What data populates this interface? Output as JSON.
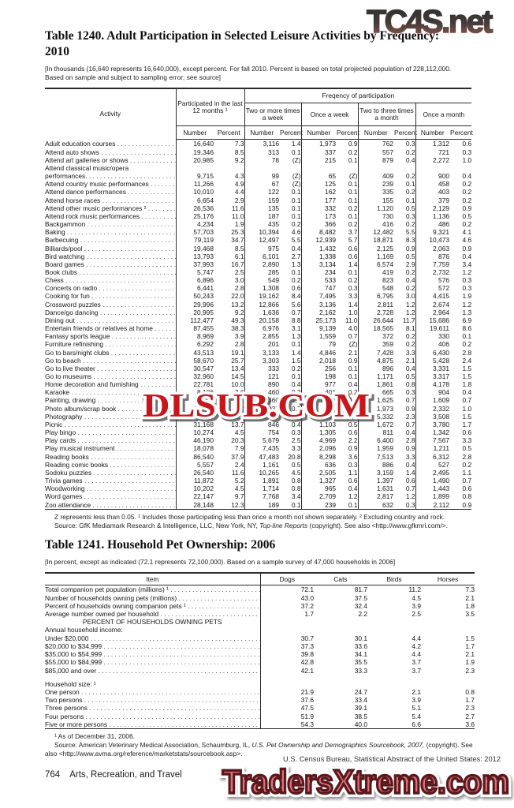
{
  "watermarks": {
    "top": "TC4S.net",
    "middle": "DLSUB.COM",
    "bottom": "TradersXtreme.com",
    "top_color_top": "#2d2d2d",
    "top_color_bottom": "#9c5c50",
    "middle_color": "#c5171c",
    "bottom_fill": "#d8747c",
    "bottom_stroke": "#5a181c"
  },
  "t1240": {
    "title_line1": "Table 1240. Adult Participation in Selected Leisure Activities by Frequency:",
    "title_line2": "2010",
    "note": "[In thousands (16,640 represents 16,640,000), except percent. For fall 2010. Percent is based on total projected population of 228,112,000. Based on sample and subject to sampling error; see source]",
    "header": {
      "activity": "Activity",
      "participated": "Participated in the last 12 months ¹",
      "frequency": "Freqency of participation",
      "groups": [
        "Two or more times a week",
        "Once a week",
        "Two to three times a month",
        "Once a month"
      ],
      "number": "Number",
      "percent": "Percent"
    },
    "rows": [
      [
        "Adult education courses",
        "16,640",
        "7.3",
        "3,116",
        "1.4",
        "1,973",
        "0.9",
        "762",
        "0.3",
        "1,312",
        "0.6"
      ],
      [
        "Attend auto shows",
        "19,346",
        "8.5",
        "313",
        "0.1",
        "337",
        "0.2",
        "557",
        "0.2",
        "721",
        "0.3"
      ],
      [
        "Attend art galleries or shows",
        "20,985",
        "9.2",
        "78",
        "(Z)",
        "215",
        "0.1",
        "879",
        "0.4",
        "2,272",
        "1.0"
      ],
      [
        "Attend classical music/opera|performances.",
        "9,715",
        "4.3",
        "99",
        "(Z)",
        "65",
        "(Z)",
        "409",
        "0.2",
        "900",
        "0.4"
      ],
      [
        "Attend country music performances",
        "11,266",
        "4.9",
        "67",
        "(Z)",
        "125",
        "0.1",
        "239",
        "0.1",
        "458",
        "0.2"
      ],
      [
        "Attend dance performances",
        "10,010",
        "4.4",
        "122",
        "0.1",
        "162",
        "0.1",
        "335",
        "0.2",
        "403",
        "0.2"
      ],
      [
        "Attend horse races",
        "6,654",
        "2.9",
        "159",
        "0.1",
        "177",
        "0.1",
        "155",
        "0.1",
        "379",
        "0.2"
      ],
      [
        "Attend other music performances ²",
        "26,536",
        "11.6",
        "135",
        "0.1",
        "332",
        "0.2",
        "1,120",
        "0.5",
        "2,129",
        "0.9"
      ],
      [
        "Attend rock music performances",
        "25,176",
        "11.0",
        "187",
        "0.1",
        "173",
        "0.1",
        "730",
        "0.3",
        "1,136",
        "0.5"
      ],
      [
        "Backgammon",
        "4,234",
        "1.9",
        "435",
        "0.2",
        "366",
        "0.2",
        "416",
        "0.2",
        "486",
        "0.2"
      ],
      [
        "Baking",
        "57,703",
        "25.3",
        "10,394",
        "4.6",
        "8,482",
        "3.7",
        "12,482",
        "5.5",
        "9,321",
        "4.1"
      ],
      [
        "Barbecuing",
        "79,119",
        "34.7",
        "12,497",
        "5.5",
        "12,939",
        "5.7",
        "18,871",
        "8.3",
        "10,473",
        "4.6"
      ],
      [
        "Billiards/pool",
        "19,468",
        "8.5",
        "975",
        "0.4",
        "1,432",
        "0.6",
        "2,125",
        "0.9",
        "2,063",
        "0.9"
      ],
      [
        "Bird watching",
        "13,793",
        "6.1",
        "6,101",
        "2.7",
        "1,338",
        "0.6",
        "1,169",
        "0.5",
        "876",
        "0.4"
      ],
      [
        "Board games",
        "37,993",
        "16.7",
        "2,890",
        "1.3",
        "3,134",
        "1.4",
        "6,574",
        "2.9",
        "7,759",
        "3.4"
      ],
      [
        "Book clubs",
        "5,747",
        "2.5",
        "285",
        "0.1",
        "234",
        "0.1",
        "419",
        "0.2",
        "2,732",
        "1.2"
      ],
      [
        "Chess",
        "6,896",
        "3.0",
        "549",
        "0.2",
        "533",
        "0.2",
        "823",
        "0.4",
        "576",
        "0.3"
      ],
      [
        "Concerts on radio",
        "6,441",
        "2.8",
        "1,308",
        "0.6",
        "747",
        "0.3",
        "548",
        "0.2",
        "572",
        "0.3"
      ],
      [
        "Cooking for fun",
        "50,243",
        "22.0",
        "19,162",
        "8.4",
        "7,495",
        "3.3",
        "6,795",
        "3.0",
        "4,415",
        "1.9"
      ],
      [
        "Crossword puzzles",
        "29,996",
        "13.2",
        "12,866",
        "5.6",
        "3,136",
        "1.4",
        "2,811",
        "1.2",
        "2,674",
        "1.2"
      ],
      [
        "Dance/go dancing",
        "20,995",
        "9.2",
        "1,636",
        "0.7",
        "2,162",
        "1.0",
        "2,728",
        "1.2",
        "2,964",
        "1.3"
      ],
      [
        "Dining out",
        "112,477",
        "49.3",
        "20,158",
        "8.8",
        "25,173",
        "11.0",
        "26,644",
        "11.7",
        "15,686",
        "6.9"
      ],
      [
        "Entertain friends or relatives at home",
        "87,455",
        "38.3",
        "6,976",
        "3.1",
        "9,139",
        "4.0",
        "18,565",
        "8.1",
        "19,611",
        "8.6"
      ],
      [
        "Fantasy sports league",
        "8,969",
        "3.9",
        "2,855",
        "1.3",
        "1,559",
        "0.7",
        "372",
        "0.2",
        "330",
        "0.1"
      ],
      [
        "Furniture refinishing",
        "6,292",
        "2.8",
        "201",
        "0.1",
        "79",
        "(Z)",
        "359",
        "0.2",
        "406",
        "0.2"
      ],
      [
        "Go to bars/night clubs",
        "43,513",
        "19.1",
        "3,133",
        "1.4",
        "4,846",
        "2.1",
        "7,428",
        "3.3",
        "6,430",
        "2.8"
      ],
      [
        "Go to beach",
        "58,670",
        "25.7",
        "3,303",
        "1.5",
        "2,018",
        "0.9",
        "4,875",
        "2.1",
        "5,428",
        "2.4"
      ],
      [
        "Go to live theater",
        "30,547",
        "13.4",
        "333",
        "0.2",
        "256",
        "0.1",
        "896",
        "0.4",
        "3,331",
        "1.5"
      ],
      [
        "Go to museums",
        "32,960",
        "14.5",
        "121",
        "0.1",
        "198",
        "0.1",
        "1,171",
        "0.5",
        "3,317",
        "1.5"
      ],
      [
        "Home decoration and furnishing",
        "22,781",
        "10.0",
        "890",
        "0.4",
        "977",
        "0.4",
        "1,861",
        "0.8",
        "4,178",
        "1.8"
      ],
      [
        "Karaoke",
        "8,186",
        "3.6",
        "460",
        "0.2",
        "401",
        "0.2",
        "665",
        "0.3",
        "904",
        "0.4"
      ],
      [
        "Painting, drawing",
        "13,791",
        "6.1",
        "2,360",
        "1.0",
        "1,288",
        "0.6",
        "1,625",
        "0.7",
        "1,609",
        "0.7"
      ],
      [
        "Photo album/scrap book",
        "15,284",
        "6.7",
        "1,037",
        "0.5",
        "546",
        "0.2",
        "1,973",
        "0.9",
        "2,332",
        "1.0"
      ],
      [
        "Photography",
        "27,417",
        "12.0",
        "3,247",
        "1.4",
        "2,083",
        "0.9",
        "5,332",
        "2.3",
        "3,508",
        "1.5"
      ],
      [
        "Picnic",
        "31,168",
        "13.7",
        "846",
        "0.4",
        "1,103",
        "0.5",
        "1,672",
        "0.7",
        "3,780",
        "1.7"
      ],
      [
        "Play bingo",
        "10,274",
        "4.5",
        "754",
        "0.3",
        "1,305",
        "0.6",
        "811",
        "0.4",
        "1,342",
        "0.6"
      ],
      [
        "Play cards",
        "46,190",
        "20.3",
        "5,679",
        "2.5",
        "4,969",
        "2.2",
        "6,400",
        "2.8",
        "7,567",
        "3.3"
      ],
      [
        "Play musical instrument",
        "18,078",
        "7.9",
        "7,435",
        "3.3",
        "2,096",
        "0.9",
        "1,959",
        "0.9",
        "1,211",
        "0.5"
      ],
      [
        "Reading books",
        "86,540",
        "37.9",
        "47,483",
        "20.8",
        "8,298",
        "3.6",
        "7,513",
        "3.3",
        "6,312",
        "2.8"
      ],
      [
        "Reading comic books",
        "5,557",
        "2.4",
        "1,161",
        "0.5",
        "636",
        "0.3",
        "886",
        "0.4",
        "527",
        "0.2"
      ],
      [
        "Sodoku puzzles",
        "26,540",
        "11.6",
        "10,265",
        "4.5",
        "2,505",
        "1.1",
        "3,159",
        "1.4",
        "2,495",
        "1.1"
      ],
      [
        "Trivia games",
        "11,872",
        "5.2",
        "1,891",
        "0.8",
        "1,327",
        "0.6",
        "1,397",
        "0.6",
        "1,490",
        "0.7"
      ],
      [
        "Woodworking",
        "10,202",
        "4.5",
        "1,714",
        "0.8",
        "965",
        "0.4",
        "1,631",
        "0.7",
        "1,443",
        "0.6"
      ],
      [
        "Word games",
        "22,147",
        "9.7",
        "7,768",
        "3.4",
        "2,709",
        "1.2",
        "2,817",
        "1.2",
        "1,899",
        "0.8"
      ],
      [
        "Zoo attendance",
        "28,148",
        "12.3",
        "189",
        "0.1",
        "239",
        "0.1",
        "632",
        "0.3",
        "2,112",
        "0.9"
      ]
    ],
    "footnote": "Z represents less than 0.05. ¹ Includes those participating less than once a month not shown separately. ² Excluding country and rock.",
    "source_pre": "Source: GfK Mediamark Research & Intelligence, LLC, New York, NY, ",
    "source_italic": "Top-line Reports",
    "source_post": " (copyright). See also <http://www.gfkmri.com/>."
  },
  "t1241": {
    "title": "Table 1241. Household Pet Ownership: 2006",
    "note": "[In percent, except as indicated (72.1 represents 72,100,000). Based on a sample survey of 47,000 households in 2006]",
    "header": {
      "item": "Item",
      "cols": [
        "Dogs",
        "Cats",
        "Birds",
        "Horses"
      ]
    },
    "rows": [
      {
        "t": "d",
        "i": 0,
        "l": "Total companion pet population (millions) ¹",
        "v": [
          "72.1",
          "81.7",
          "11.2",
          "7.3"
        ]
      },
      {
        "t": "d",
        "i": 0,
        "l": "Number of households owning pets (millions)",
        "v": [
          "43.0",
          "37.5",
          "4.5",
          "2.1"
        ]
      },
      {
        "t": "d",
        "i": 1,
        "l": "Percent of households owning companion pets ¹",
        "v": [
          "37.2",
          "32.4",
          "3.9",
          "1.8"
        ]
      },
      {
        "t": "d",
        "i": 1,
        "l": "Average number owned per household",
        "v": [
          "1.7",
          "2.2",
          "2.5",
          "3.5"
        ]
      },
      {
        "t": "s",
        "l": "PERCENT OF HOUSEHOLDS OWNING PETS"
      },
      {
        "t": "g",
        "l": "Annual household income:"
      },
      {
        "t": "d",
        "i": 1,
        "l": "Under $20,000",
        "v": [
          "30.7",
          "30.1",
          "4.4",
          "1.5"
        ]
      },
      {
        "t": "d",
        "i": 1,
        "l": "$20,000 to $34,999",
        "v": [
          "37.3",
          "33.6",
          "4.2",
          "1.7"
        ]
      },
      {
        "t": "d",
        "i": 1,
        "l": "$35,000 to $54,999",
        "v": [
          "39.8",
          "34.1",
          "4.4",
          "2.1"
        ]
      },
      {
        "t": "d",
        "i": 1,
        "l": "$55,000 to $84,999",
        "v": [
          "42.8",
          "35.5",
          "3.7",
          "1.9"
        ]
      },
      {
        "t": "d",
        "i": 1,
        "l": "$85,000 and over",
        "v": [
          "42.1",
          "33.3",
          "3.7",
          "2.3"
        ]
      },
      {
        "t": "g2",
        "l": "Household size: ¹"
      },
      {
        "t": "d",
        "i": 1,
        "l": "One person",
        "v": [
          "21.9",
          "24.7",
          "2.1",
          "0.8"
        ]
      },
      {
        "t": "d",
        "i": 1,
        "l": "Two persons",
        "v": [
          "37.6",
          "33.4",
          "3.9",
          "1.7"
        ]
      },
      {
        "t": "d",
        "i": 1,
        "l": "Three persons",
        "v": [
          "47.5",
          "39.1",
          "5.1",
          "2.3"
        ]
      },
      {
        "t": "d",
        "i": 1,
        "l": "Four persons",
        "v": [
          "51.9",
          "38.5",
          "5.4",
          "2.7"
        ]
      },
      {
        "t": "d",
        "i": 1,
        "l": "Five or more persons",
        "v": [
          "54.3",
          "40.0",
          "6.6",
          "3.6"
        ]
      }
    ],
    "footnote": "¹ As of December 31, 2006.",
    "source_pre": "Source: American Veterinary Medical Association, Schaumburg, IL, ",
    "source_italic": "U.S. Pet Ownership and Demographics Sourcebook, 2007,",
    "source_post": " (copyright). See also <http://www.avma.org/reference/marketstats/sourcebook.asp>."
  },
  "footer": {
    "page_number": "764",
    "section": "Arts, Recreation, and Travel",
    "attribution": "U.S. Census Bureau, Statistical Abstract of the United States: 2012"
  }
}
